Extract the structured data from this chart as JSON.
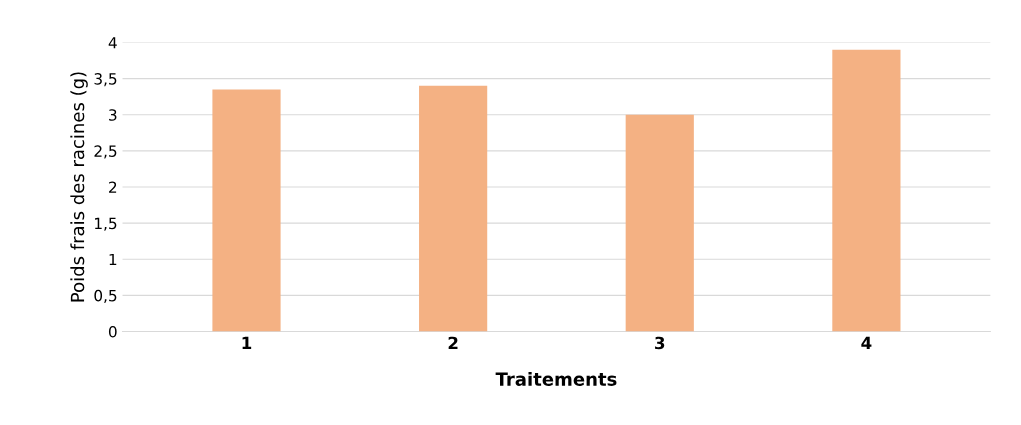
{
  "chart_data": {
    "type": "bar",
    "xlabel": "Traitements",
    "ylabel": "Poids frais des racines (g)",
    "categories": [
      "1",
      "2",
      "3",
      "4"
    ],
    "values": [
      3.35,
      3.4,
      3.0,
      3.9
    ],
    "color": "#f4b183",
    "ylim": [
      0,
      4
    ],
    "yticks": [
      0,
      {
        "value": 0.5,
        "label": "0,5"
      },
      1,
      {
        "value": 1.5,
        "label": "1,5"
      },
      2,
      {
        "value": 2.5,
        "label": "2,5"
      },
      3,
      {
        "value": 3.5,
        "label": "3,5"
      },
      4
    ],
    "grid": "y"
  }
}
